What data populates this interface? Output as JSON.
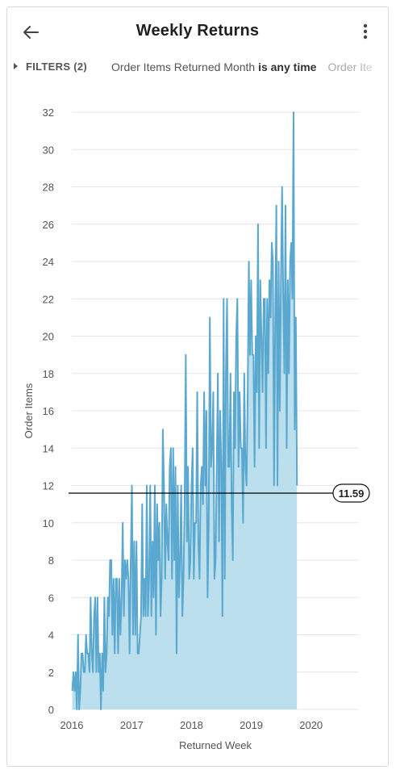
{
  "header": {
    "title": "Weekly Returns",
    "back_icon": "arrow-left-icon",
    "menu_icon": "more-vertical-icon"
  },
  "filters": {
    "toggle_label": "FILTERS (2)",
    "filter_field": "Order Items Returned Month ",
    "filter_condition": "is any time",
    "filter_more": "Order Ite"
  },
  "colors": {
    "line": "#5aa8d0",
    "area": "#bcdfee",
    "reference": "#000000",
    "grid": "#e6e6e6"
  },
  "chart_data": {
    "type": "area",
    "xlabel": "Returned Week",
    "ylabel": "Order Items",
    "ylim": [
      0,
      32
    ],
    "xlim": [
      "2016-01-01",
      "2020-10-19"
    ],
    "y_ticks": [
      0,
      2,
      4,
      6,
      8,
      10,
      12,
      14,
      16,
      18,
      20,
      22,
      24,
      26,
      28,
      30,
      32
    ],
    "x_ticks": [
      "2016",
      "2017",
      "2018",
      "2019",
      "2020"
    ],
    "reference_line": {
      "value": 11.59,
      "label": "11.59"
    },
    "grid": true,
    "start_week": "2016-01-04",
    "interval_days": 7,
    "values": [
      1,
      2,
      1,
      2,
      0,
      4,
      0,
      1,
      3,
      3,
      2,
      2,
      4,
      3,
      3,
      2,
      6,
      3,
      2,
      5,
      6,
      2,
      6,
      2,
      3,
      0,
      3,
      1,
      6,
      2,
      3,
      6,
      5,
      8,
      8,
      4,
      7,
      3,
      7,
      7,
      3,
      7,
      4,
      6,
      10,
      5,
      8,
      7,
      8,
      7,
      3,
      8,
      12,
      4,
      9,
      4,
      9,
      3,
      3,
      4,
      5,
      11,
      5,
      7,
      5,
      12,
      5,
      7,
      12,
      5,
      9,
      6,
      12,
      4,
      11,
      8,
      10,
      5,
      7,
      15,
      12,
      7,
      11,
      9,
      8,
      13,
      14,
      7,
      14,
      8,
      13,
      3,
      12,
      6,
      8,
      12,
      5,
      7,
      11,
      19,
      9,
      13,
      7,
      8,
      12,
      14,
      7,
      10,
      10,
      17,
      9,
      7,
      12,
      13,
      11,
      17,
      12,
      16,
      6,
      10,
      21,
      13,
      14,
      17,
      7,
      8,
      13,
      18,
      9,
      16,
      13,
      5,
      22,
      7,
      18,
      22,
      13,
      13,
      18,
      11,
      8,
      17,
      14,
      20,
      22,
      13,
      17,
      14,
      14,
      10,
      18,
      13,
      12,
      17,
      24,
      19,
      23,
      19,
      19,
      13,
      20,
      17,
      26,
      14,
      23,
      20,
      17,
      22,
      22,
      14,
      22,
      18,
      23,
      21,
      25,
      24,
      12,
      21,
      27,
      12,
      24,
      16,
      23,
      28,
      22,
      18,
      27,
      14,
      23,
      18,
      24,
      25,
      22,
      32,
      15,
      21,
      12
    ]
  }
}
